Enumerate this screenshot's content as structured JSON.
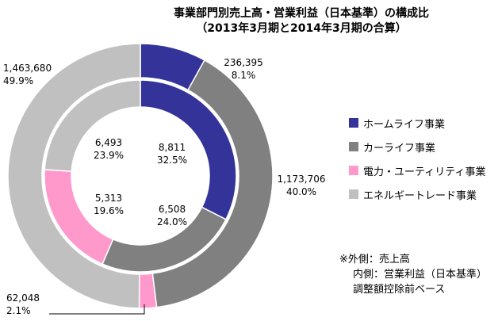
{
  "chart_data": {
    "type": "pie",
    "subtype": "donut",
    "title": "事業部門別売上高・営業利益（日本基準）の構成比",
    "subtitle": "（2013年3月期と2014年3月期の合算）",
    "categories": [
      "ホームライフ事業",
      "カーライフ事業",
      "電力・ユーティリティ事業",
      "エネルギートレード事業"
    ],
    "colors": [
      "#333399",
      "#808080",
      "#ff99cc",
      "#c0c0c0"
    ],
    "series": [
      {
        "name": "売上高",
        "ring": "outer",
        "values": [
          236395,
          1173706,
          62048,
          1463680
        ],
        "value_labels": [
          "236,395",
          "1,173,706",
          "62,048",
          "1,463,680"
        ],
        "percent_labels": [
          "8.1%",
          "40.0%",
          "2.1%",
          "49.9%"
        ]
      },
      {
        "name": "営業利益（日本基準）",
        "ring": "inner",
        "values": [
          8811,
          6508,
          5313,
          6493
        ],
        "value_labels": [
          "8,811",
          "6,508",
          "5,313",
          "6,493"
        ],
        "percent_labels": [
          "32.5%",
          "24.0%",
          "19.6%",
          "23.9%"
        ]
      }
    ],
    "legend_position": "right",
    "notes": [
      "※外側：売上高",
      "内側：営業利益（日本基準）",
      "調整額控除前ベース"
    ]
  }
}
